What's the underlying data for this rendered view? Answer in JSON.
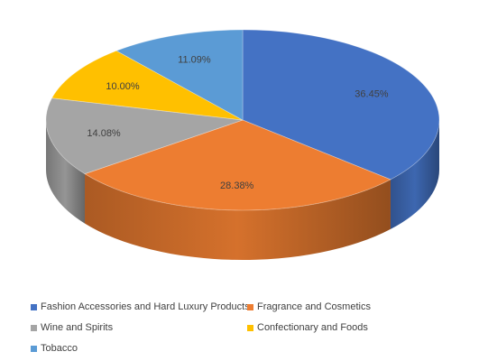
{
  "chart_data": {
    "type": "pie",
    "style": "3d",
    "categories": [
      "Fashion Accessories and Hard Luxury Products",
      "Fragrance and Cosmetics",
      "Wine and Spirits",
      "Confectionary and Foods",
      "Tobacco"
    ],
    "values": [
      36.45,
      28.38,
      14.08,
      10.0,
      11.09
    ],
    "labels": [
      "36.45%",
      "28.38%",
      "14.08%",
      "10.00%",
      "11.09%"
    ],
    "colors": [
      "#4472C4",
      "#ED7D31",
      "#A5A5A5",
      "#FFC000",
      "#5B9BD5"
    ],
    "legend_position": "bottom"
  }
}
